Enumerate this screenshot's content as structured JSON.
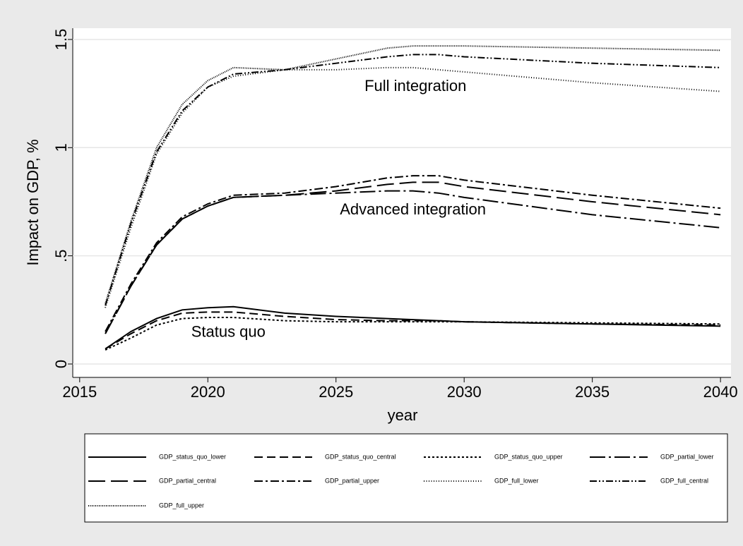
{
  "chart_data": {
    "type": "line",
    "x_label": "year",
    "y_label": "Impact on GDP, %",
    "x": [
      2016,
      2017,
      2018,
      2019,
      2020,
      2021,
      2023,
      2025,
      2027,
      2028,
      2029,
      2030,
      2035,
      2040
    ],
    "series": [
      {
        "name": "GDP_status_quo_lower",
        "color": "#000000",
        "dash": "none",
        "values": [
          0.07,
          0.15,
          0.21,
          0.25,
          0.26,
          0.265,
          0.235,
          0.22,
          0.21,
          0.205,
          0.2,
          0.195,
          0.185,
          0.175
        ]
      },
      {
        "name": "GDP_status_quo_central",
        "color": "#000000",
        "dash": "12 6",
        "values": [
          0.07,
          0.14,
          0.2,
          0.235,
          0.24,
          0.24,
          0.22,
          0.205,
          0.2,
          0.2,
          0.2,
          0.195,
          0.185,
          0.18
        ]
      },
      {
        "name": "GDP_status_quo_upper",
        "color": "#000000",
        "dash": "3 3",
        "values": [
          0.065,
          0.12,
          0.18,
          0.21,
          0.215,
          0.215,
          0.2,
          0.195,
          0.195,
          0.195,
          0.195,
          0.195,
          0.19,
          0.185
        ]
      },
      {
        "name": "GDP_partial_lower",
        "color": "#000000",
        "dash": "22 5 3 5",
        "values": [
          0.14,
          0.36,
          0.55,
          0.67,
          0.73,
          0.77,
          0.78,
          0.79,
          0.8,
          0.8,
          0.79,
          0.77,
          0.69,
          0.63
        ]
      },
      {
        "name": "GDP_partial_central",
        "color": "#000000",
        "dash": "24 8",
        "values": [
          0.14,
          0.36,
          0.55,
          0.67,
          0.73,
          0.77,
          0.78,
          0.8,
          0.83,
          0.84,
          0.84,
          0.82,
          0.75,
          0.69
        ]
      },
      {
        "name": "GDP_partial_upper",
        "color": "#000000",
        "dash": "12 4 3 4",
        "values": [
          0.15,
          0.37,
          0.56,
          0.68,
          0.74,
          0.78,
          0.79,
          0.82,
          0.86,
          0.87,
          0.87,
          0.85,
          0.78,
          0.72
        ]
      },
      {
        "name": "GDP_full_lower",
        "color": "#000000",
        "dash": "1 2.5",
        "values": [
          0.26,
          0.63,
          0.97,
          1.16,
          1.28,
          1.33,
          1.36,
          1.36,
          1.37,
          1.37,
          1.36,
          1.35,
          1.3,
          1.26
        ]
      },
      {
        "name": "GDP_full_central",
        "color": "#000000",
        "dash": "10 3 2 3 2 3",
        "values": [
          0.27,
          0.65,
          0.98,
          1.17,
          1.28,
          1.34,
          1.36,
          1.39,
          1.42,
          1.43,
          1.43,
          1.42,
          1.39,
          1.37
        ]
      },
      {
        "name": "GDP_full_upper",
        "color": "#000000",
        "dash": "1 1.5",
        "values": [
          0.28,
          0.66,
          1.0,
          1.2,
          1.31,
          1.37,
          1.36,
          1.41,
          1.46,
          1.47,
          1.47,
          1.47,
          1.46,
          1.45
        ]
      }
    ],
    "annotations": [
      {
        "text": "Full integration",
        "x": 2028.1,
        "y": 1.28
      },
      {
        "text": "Advanced integration",
        "x": 2028,
        "y": 0.71
      },
      {
        "text": "Status quo",
        "x": 2020.8,
        "y": 0.145
      }
    ],
    "xlim": [
      2014.73,
      2040.41
    ],
    "ylim": [
      -0.062,
      1.552
    ],
    "xticks": [
      2015,
      2020,
      2025,
      2030,
      2035,
      2040
    ],
    "yticks": [
      0,
      {
        "value": 0.5,
        "label": ".5"
      },
      1,
      1.5
    ],
    "grid": true,
    "legend": "bottom"
  }
}
